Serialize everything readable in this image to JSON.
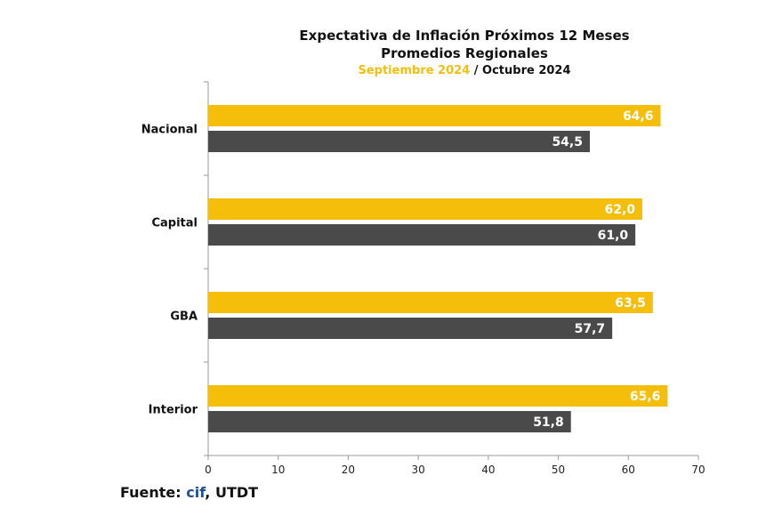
{
  "chart_data": {
    "type": "bar",
    "orientation": "horizontal",
    "title": "Expectativa de Inflación Próximos 12 Meses",
    "subtitle": "Promedios Regionales",
    "categories": [
      "Nacional",
      "Capital",
      "GBA",
      "Interior"
    ],
    "series": [
      {
        "name": "Septiembre 2024",
        "color": "#f5be0a",
        "values": [
          64.6,
          62.0,
          63.5,
          65.6
        ],
        "labels": [
          "64,6",
          "62,0",
          "63,5",
          "65,6"
        ]
      },
      {
        "name": "Octubre 2024",
        "color": "#4a4a4a",
        "values": [
          54.5,
          61.0,
          57.7,
          51.8
        ],
        "labels": [
          "54,5",
          "61,0",
          "57,7",
          "51,8"
        ]
      }
    ],
    "xlim": [
      0,
      70
    ],
    "xticks": [
      "0",
      "10",
      "20",
      "30",
      "40",
      "50",
      "60",
      "70"
    ],
    "legend_separator": "/",
    "grid": false
  },
  "footer": {
    "prefix": "Fuente: ",
    "cif": "cif",
    "suffix": ", UTDT"
  }
}
